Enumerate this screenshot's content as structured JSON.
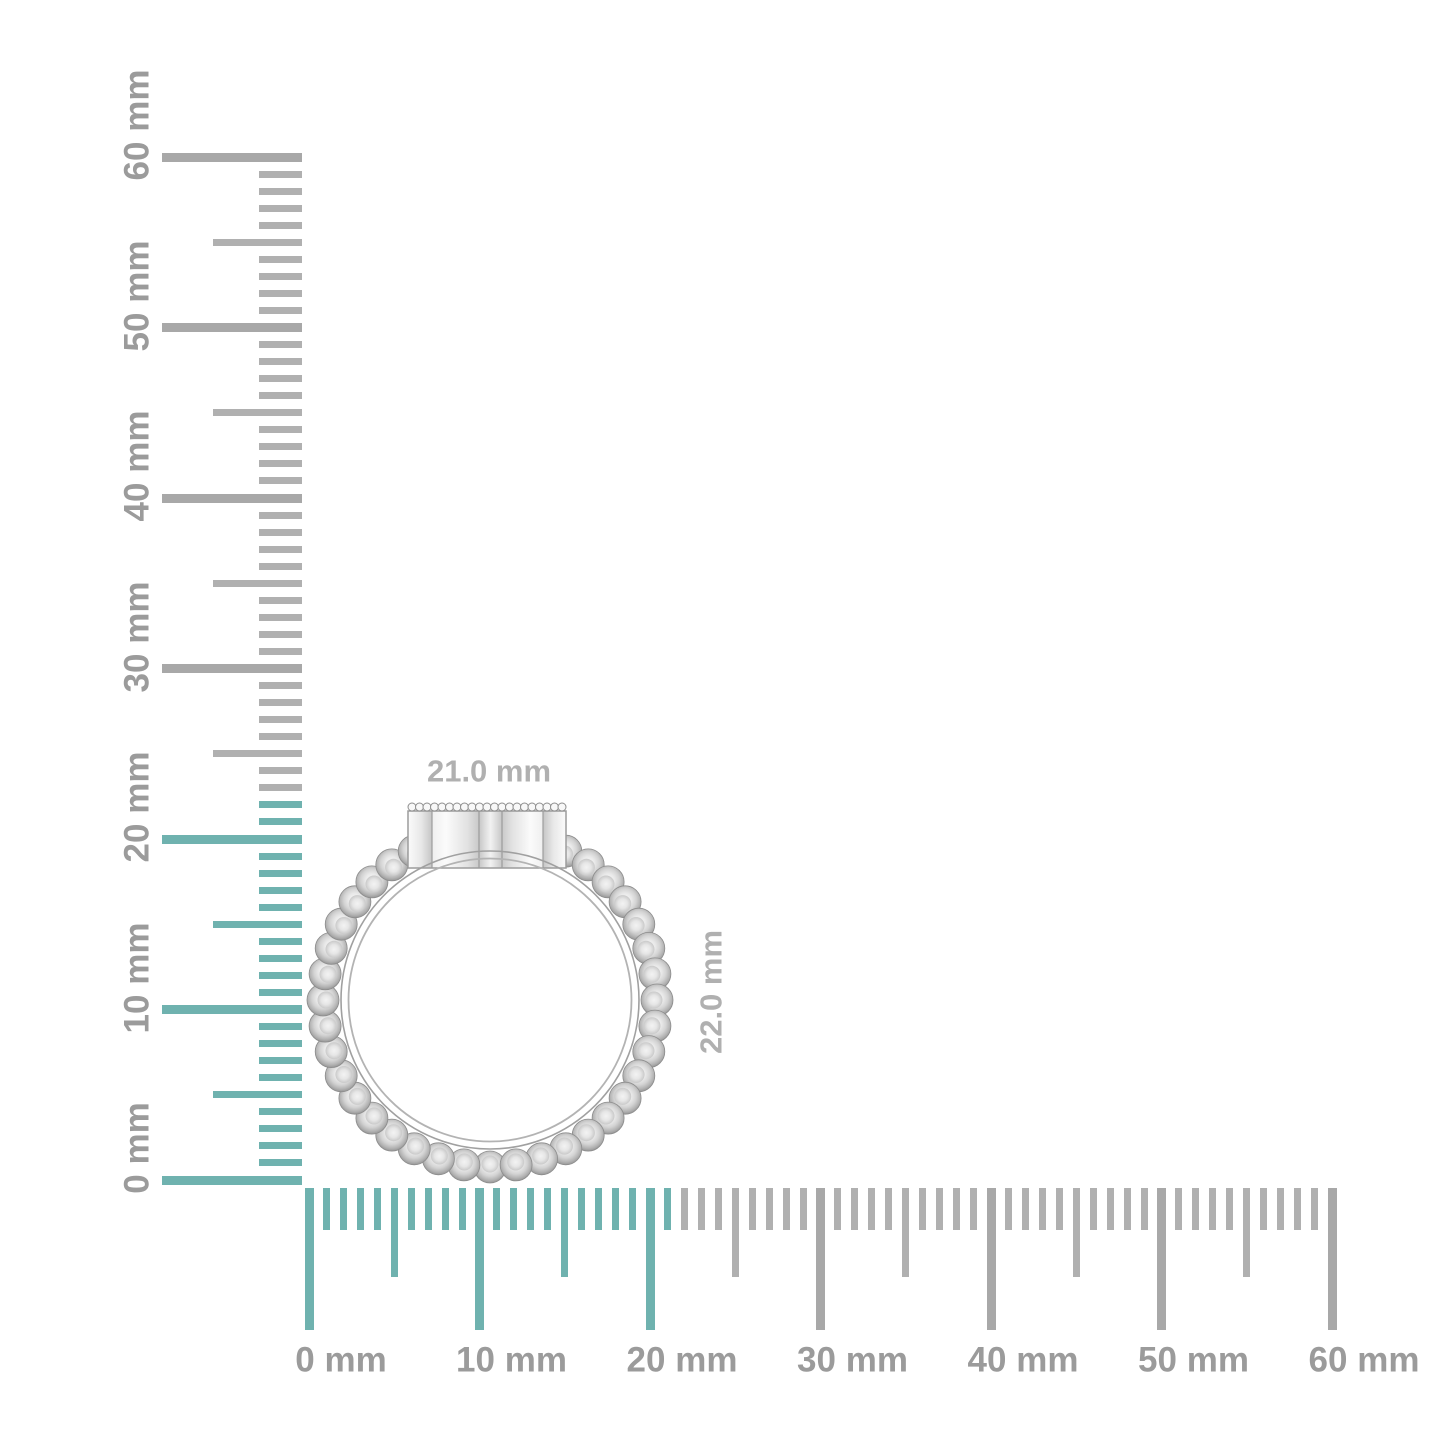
{
  "product": {
    "description": "beaded-band-cluster-ring-side-view",
    "width_label": "21.0 mm",
    "height_label": "22.0 mm"
  },
  "colors": {
    "accent_teal": "#6fb2af",
    "tick_gray": "#b0b0b0",
    "tick_gray_major": "#a8a8a8",
    "ruler_label_gray": "#9b9b9b",
    "dimension_label_gray": "#b0b0b0",
    "metal_outline_gray": "#9c9c9c"
  },
  "vertical_ruler": {
    "unit": "mm",
    "min_mm": 0,
    "max_mm": 60,
    "minor_step_mm": 1,
    "medium_step_mm": 5,
    "major_step_mm": 10,
    "highlight_up_to_mm": 22,
    "labels": [
      "0 mm",
      "10 mm",
      "20 mm",
      "30 mm",
      "40 mm",
      "50 mm",
      "60 mm"
    ]
  },
  "horizontal_ruler": {
    "unit": "mm",
    "min_mm": 0,
    "max_mm": 60,
    "minor_step_mm": 1,
    "medium_step_mm": 5,
    "major_step_mm": 10,
    "highlight_up_to_mm": 21,
    "labels": [
      "0 mm",
      "10 mm",
      "20 mm",
      "30 mm",
      "40 mm",
      "50 mm",
      "60 mm"
    ]
  }
}
